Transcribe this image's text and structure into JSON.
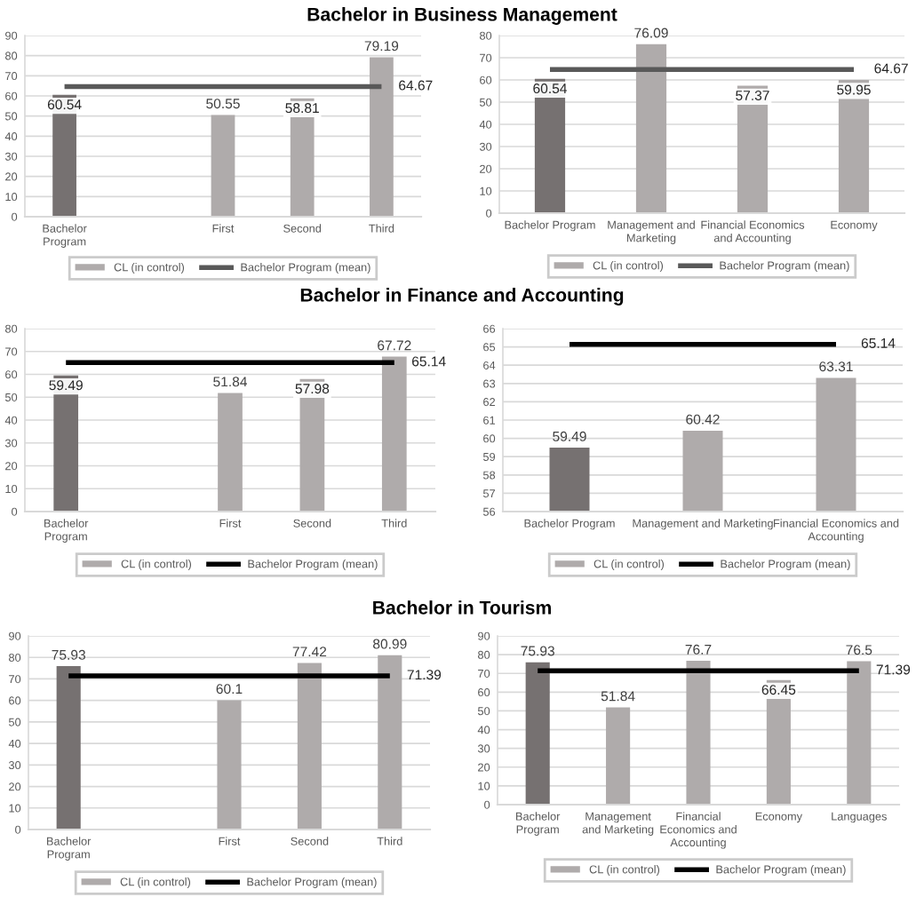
{
  "chart_data": [
    {
      "type": "bar",
      "title": "Bachelor in Business Management",
      "categories": [
        "Bachelor Program",
        null,
        "First",
        "Second",
        "Third"
      ],
      "series": [
        {
          "name": "CL (in control)",
          "color": "#afabab",
          "colors": [
            "#767171",
            "#afabab",
            "#afabab",
            "#afabab",
            "#afabab"
          ],
          "values": [
            60.54,
            null,
            50.55,
            58.81,
            79.19
          ],
          "value_labels": [
            "60.54",
            null,
            "50.55",
            "58.81",
            "79.19"
          ]
        },
        {
          "name": "Bachelor Program (mean)",
          "type": "line",
          "color": "#595959",
          "values": [
            64.67,
            64.67,
            64.67,
            64.67,
            64.67
          ],
          "value_labels": [
            null,
            null,
            null,
            null,
            "64.67"
          ]
        }
      ],
      "ylim": [
        0,
        90
      ],
      "yticks": [
        0,
        10,
        20,
        30,
        40,
        50,
        60,
        70,
        80,
        90
      ],
      "grid": "y",
      "legend": "bottom"
    },
    {
      "type": "bar",
      "categories": [
        "Bachelor Program",
        "Management and Marketing",
        "Financial Economics and Accounting",
        "Economy"
      ],
      "series": [
        {
          "name": "CL (in control)",
          "color": "#afabab",
          "colors": [
            "#767171",
            "#afabab",
            "#afabab",
            "#afabab"
          ],
          "values": [
            60.54,
            76.09,
            57.37,
            59.95
          ],
          "value_labels": [
            "60.54",
            "76.09",
            "57.37",
            "59.95"
          ]
        },
        {
          "name": "Bachelor Program (mean)",
          "type": "line",
          "color": "#595959",
          "values": [
            64.67,
            64.67,
            64.67,
            64.67
          ],
          "value_labels": [
            null,
            null,
            null,
            "64.67"
          ]
        }
      ],
      "ylim": [
        0,
        80
      ],
      "yticks": [
        0,
        10,
        20,
        30,
        40,
        50,
        60,
        70,
        80
      ],
      "grid": "y",
      "legend": "bottom"
    },
    {
      "type": "bar",
      "title": "Bachelor in Finance and Accounting",
      "categories": [
        "Bachelor Program",
        null,
        "First",
        "Second",
        "Third"
      ],
      "series": [
        {
          "name": "CL (in control)",
          "color": "#afabab",
          "colors": [
            "#767171",
            "#afabab",
            "#afabab",
            "#afabab",
            "#afabab"
          ],
          "values": [
            59.49,
            null,
            51.84,
            57.98,
            67.72
          ],
          "value_labels": [
            "59.49",
            null,
            "51.84",
            "57.98",
            "67.72"
          ]
        },
        {
          "name": "Bachelor Program (mean)",
          "type": "line",
          "color": "#000000",
          "values": [
            65.14,
            65.14,
            65.14,
            65.14,
            65.14
          ],
          "value_labels": [
            null,
            null,
            null,
            null,
            "65.14"
          ]
        }
      ],
      "ylim": [
        0,
        80
      ],
      "yticks": [
        0,
        10,
        20,
        30,
        40,
        50,
        60,
        70,
        80
      ],
      "grid": "y",
      "legend": "bottom"
    },
    {
      "type": "bar",
      "categories": [
        "Bachelor Program",
        "Management and Marketing",
        "Financial Economics and Accounting"
      ],
      "series": [
        {
          "name": "CL (in control)",
          "color": "#afabab",
          "colors": [
            "#767171",
            "#afabab",
            "#afabab"
          ],
          "values": [
            59.49,
            60.42,
            63.31
          ],
          "value_labels": [
            "59.49",
            "60.42",
            "63.31"
          ]
        },
        {
          "name": "Bachelor Program (mean)",
          "type": "line",
          "color": "#000000",
          "values": [
            65.14,
            65.14,
            65.14
          ],
          "value_labels": [
            null,
            null,
            "65.14"
          ]
        }
      ],
      "ylim": [
        56,
        66
      ],
      "yticks": [
        56,
        57,
        58,
        59,
        60,
        61,
        62,
        63,
        64,
        65,
        66
      ],
      "grid": "y",
      "legend": "bottom"
    },
    {
      "type": "bar",
      "title": "Bachelor in Tourism",
      "categories": [
        "Bachelor Program",
        null,
        "First",
        "Second",
        "Third"
      ],
      "series": [
        {
          "name": "CL (in control)",
          "color": "#afabab",
          "colors": [
            "#767171",
            "#afabab",
            "#afabab",
            "#afabab",
            "#afabab"
          ],
          "values": [
            75.93,
            null,
            60.1,
            77.42,
            80.99
          ],
          "value_labels": [
            "75.93",
            null,
            "60.1",
            "77.42",
            "80.99"
          ]
        },
        {
          "name": "Bachelor Program (mean)",
          "type": "line",
          "color": "#000000",
          "values": [
            71.39,
            71.39,
            71.39,
            71.39,
            71.39
          ],
          "value_labels": [
            null,
            null,
            null,
            null,
            "71.39"
          ]
        }
      ],
      "ylim": [
        0,
        90
      ],
      "yticks": [
        0,
        10,
        20,
        30,
        40,
        50,
        60,
        70,
        80,
        90
      ],
      "grid": "y",
      "legend": "bottom"
    },
    {
      "type": "bar",
      "categories": [
        "Bachelor Program",
        "Management and Marketing",
        "Financial Economics and Accounting",
        "Economy",
        "Languages"
      ],
      "series": [
        {
          "name": "CL (in control)",
          "color": "#afabab",
          "colors": [
            "#767171",
            "#afabab",
            "#afabab",
            "#afabab",
            "#afabab"
          ],
          "values": [
            75.93,
            51.84,
            76.7,
            66.45,
            76.5
          ],
          "value_labels": [
            "75.93",
            "51.84",
            "76.7",
            "66.45",
            "76.5"
          ]
        },
        {
          "name": "Bachelor Program (mean)",
          "type": "line",
          "color": "#000000",
          "values": [
            71.39,
            71.39,
            71.39,
            71.39,
            71.39
          ],
          "value_labels": [
            null,
            null,
            null,
            null,
            "71.39"
          ]
        }
      ],
      "ylim": [
        0,
        90
      ],
      "yticks": [
        0,
        10,
        20,
        30,
        40,
        50,
        60,
        70,
        80,
        90
      ],
      "grid": "y",
      "legend": "bottom"
    }
  ]
}
